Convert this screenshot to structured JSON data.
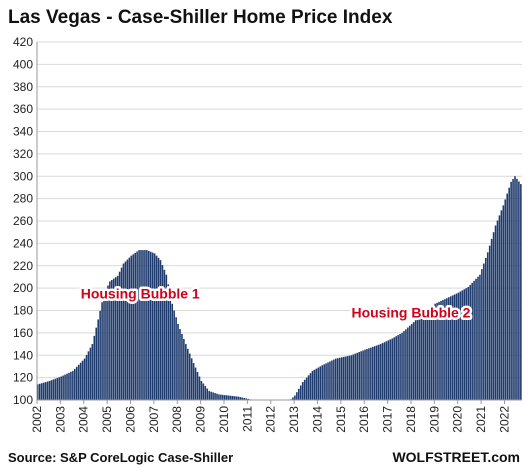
{
  "chart_data": {
    "type": "bar",
    "title": "Las Vegas - Case-Shiller Home Price Index",
    "xlabel": "",
    "ylabel": "",
    "ylim": [
      100,
      420
    ],
    "yticks": [
      100,
      120,
      140,
      160,
      180,
      200,
      220,
      240,
      260,
      280,
      300,
      320,
      340,
      360,
      380,
      400,
      420
    ],
    "xticks": [
      "2002",
      "2003",
      "2004",
      "2005",
      "2006",
      "2007",
      "2008",
      "2009",
      "2010",
      "2011",
      "2012",
      "2013",
      "2014",
      "2015",
      "2016",
      "2017",
      "2018",
      "2019",
      "2020",
      "2021",
      "2022"
    ],
    "x_start": "2002-01",
    "x_end": "2022-09",
    "frequency": "monthly",
    "anchors": [
      [
        "2002-01",
        114
      ],
      [
        "2002-07",
        117
      ],
      [
        "2003-01",
        121
      ],
      [
        "2003-07",
        126
      ],
      [
        "2004-01",
        137
      ],
      [
        "2004-05",
        150
      ],
      [
        "2004-08",
        172
      ],
      [
        "2004-11",
        195
      ],
      [
        "2005-02",
        206
      ],
      [
        "2005-06",
        211
      ],
      [
        "2005-09",
        222
      ],
      [
        "2006-01",
        229
      ],
      [
        "2006-05",
        234
      ],
      [
        "2006-09",
        234
      ],
      [
        "2007-01",
        231
      ],
      [
        "2007-04",
        225
      ],
      [
        "2007-07",
        212
      ],
      [
        "2007-10",
        186
      ],
      [
        "2008-01",
        168
      ],
      [
        "2008-05",
        150
      ],
      [
        "2008-09",
        133
      ],
      [
        "2009-01",
        117
      ],
      [
        "2009-05",
        108
      ],
      [
        "2009-10",
        105
      ],
      [
        "2010-03",
        104
      ],
      [
        "2010-08",
        103
      ],
      [
        "2011-01",
        101
      ],
      [
        "2011-06",
        99
      ],
      [
        "2012-01",
        97
      ],
      [
        "2012-06",
        97
      ],
      [
        "2012-10",
        99
      ],
      [
        "2013-01",
        104
      ],
      [
        "2013-05",
        116
      ],
      [
        "2013-10",
        126
      ],
      [
        "2014-03",
        131
      ],
      [
        "2014-10",
        137
      ],
      [
        "2015-06",
        140
      ],
      [
        "2016-01",
        145
      ],
      [
        "2016-09",
        150
      ],
      [
        "2017-03",
        155
      ],
      [
        "2017-08",
        160
      ],
      [
        "2018-01",
        168
      ],
      [
        "2018-07",
        178
      ],
      [
        "2019-01",
        186
      ],
      [
        "2019-07",
        191
      ],
      [
        "2020-01",
        196
      ],
      [
        "2020-06",
        201
      ],
      [
        "2020-12",
        212
      ],
      [
        "2021-04",
        232
      ],
      [
        "2021-08",
        256
      ],
      [
        "2021-12",
        274
      ],
      [
        "2022-04",
        295
      ],
      [
        "2022-06",
        300
      ],
      [
        "2022-09",
        293
      ]
    ],
    "bar_color": "#1f3b6e",
    "grid": true,
    "annotations": [
      {
        "text": "Housing Bubble 1",
        "x": "2006-06",
        "y": 195,
        "color": "#d0021b"
      },
      {
        "text": "Housing Bubble 2",
        "x": "2018-01",
        "y": 178,
        "color": "#d0021b"
      }
    ]
  },
  "footer": {
    "source": "Source: S&P CoreLogic Case-Shiller",
    "brand": "WOLFSTREET.com"
  }
}
